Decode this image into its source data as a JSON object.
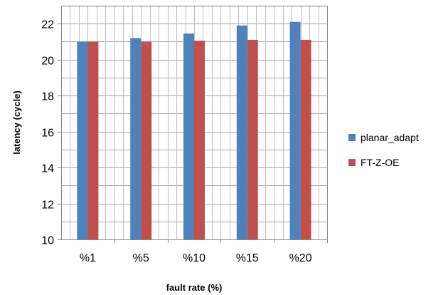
{
  "chart_data": {
    "type": "bar",
    "categories": [
      "%1",
      "%5",
      "%10",
      "%15",
      "%20"
    ],
    "series": [
      {
        "name": "planar_adapt",
        "values": [
          21.0,
          21.2,
          21.45,
          21.9,
          22.1
        ],
        "color": "#4F81BD"
      },
      {
        "name": "FT-Z-OE",
        "values": [
          21.0,
          21.0,
          21.05,
          21.1,
          21.1
        ],
        "color": "#C0504D"
      }
    ],
    "xlabel": "fault rate (%)",
    "ylabel": "latency (cycle)",
    "ylim": [
      10,
      23
    ],
    "yticks": [
      10,
      12,
      14,
      16,
      18,
      20,
      22
    ],
    "grid": true,
    "legend_position": "right"
  }
}
